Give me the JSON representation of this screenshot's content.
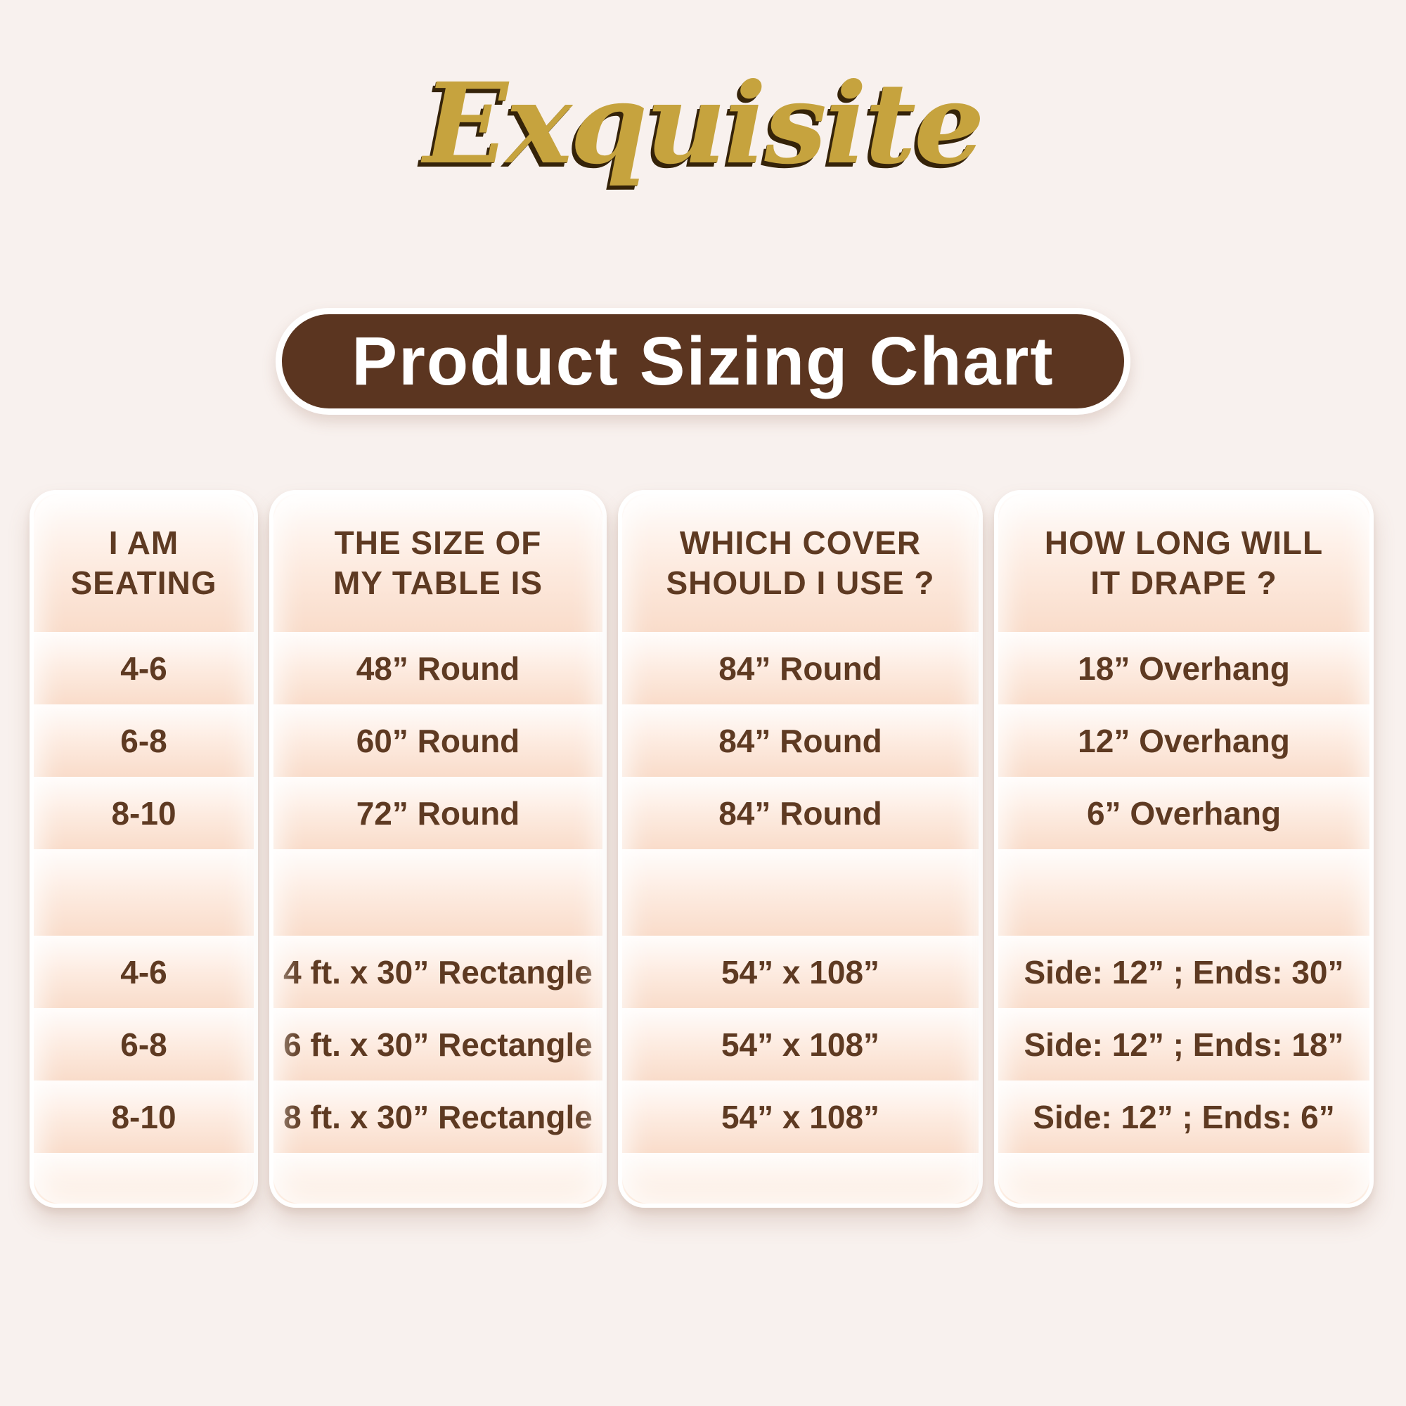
{
  "page": {
    "background_color": "#f8f1ee"
  },
  "logo": {
    "text": "Exquisite",
    "color": "#c6a33e"
  },
  "banner": {
    "label": "Product Sizing Chart",
    "bg_color": "#5b3520",
    "text_color": "#ffffff"
  },
  "table": {
    "text_color": "#5e3a22",
    "stripe_color": "#f9dcca",
    "columns": [
      {
        "id": "seating",
        "header_line1": "I AM",
        "header_line2": "SEATING"
      },
      {
        "id": "table_size",
        "header_line1": "THE SIZE OF",
        "header_line2": "MY TABLE IS"
      },
      {
        "id": "cover",
        "header_line1": "WHICH COVER",
        "header_line2": "SHOULD I USE ?"
      },
      {
        "id": "drape",
        "header_line1": "HOW LONG WILL",
        "header_line2": "IT DRAPE ?"
      }
    ],
    "rows": [
      {
        "seating": "4-6",
        "table_size": "48” Round",
        "cover": "84” Round",
        "drape": "18” Overhang"
      },
      {
        "seating": "6-8",
        "table_size": "60” Round",
        "cover": "84” Round",
        "drape": "12” Overhang"
      },
      {
        "seating": "8-10",
        "table_size": "72” Round",
        "cover": "84” Round",
        "drape": "6” Overhang"
      },
      {
        "seating": "4-6",
        "table_size": "4 ft. x 30” Rectangle",
        "cover": "54” x 108”",
        "drape": "Side: 12” ; Ends: 30”"
      },
      {
        "seating": "6-8",
        "table_size": "6 ft. x 30” Rectangle",
        "cover": "54” x 108”",
        "drape": "Side: 12” ; Ends: 18”"
      },
      {
        "seating": "8-10",
        "table_size": "8 ft. x 30” Rectangle",
        "cover": "54” x 108”",
        "drape": "Side: 12” ; Ends: 6”"
      }
    ]
  },
  "chart_data": {
    "type": "table",
    "title": "Product Sizing Chart",
    "columns": [
      "I AM SEATING",
      "THE SIZE OF MY TABLE IS",
      "WHICH COVER SHOULD I USE ?",
      "HOW LONG WILL IT DRAPE ?"
    ],
    "rows": [
      [
        "4-6",
        "48” Round",
        "84” Round",
        "18” Overhang"
      ],
      [
        "6-8",
        "60” Round",
        "84” Round",
        "12” Overhang"
      ],
      [
        "8-10",
        "72” Round",
        "84” Round",
        "6” Overhang"
      ],
      [
        "4-6",
        "4 ft. x 30” Rectangle",
        "54” x 108”",
        "Side: 12” ; Ends: 30”"
      ],
      [
        "6-8",
        "6 ft. x 30” Rectangle",
        "54” x 108”",
        "Side: 12” ; Ends: 18”"
      ],
      [
        "8-10",
        "8 ft. x 30” Rectangle",
        "54” x 108”",
        "Side: 12” ; Ends: 6”"
      ]
    ],
    "layout": {
      "row_groups": [
        "round tables",
        "rectangle tables"
      ],
      "grid": "striped horizontal bands"
    }
  }
}
